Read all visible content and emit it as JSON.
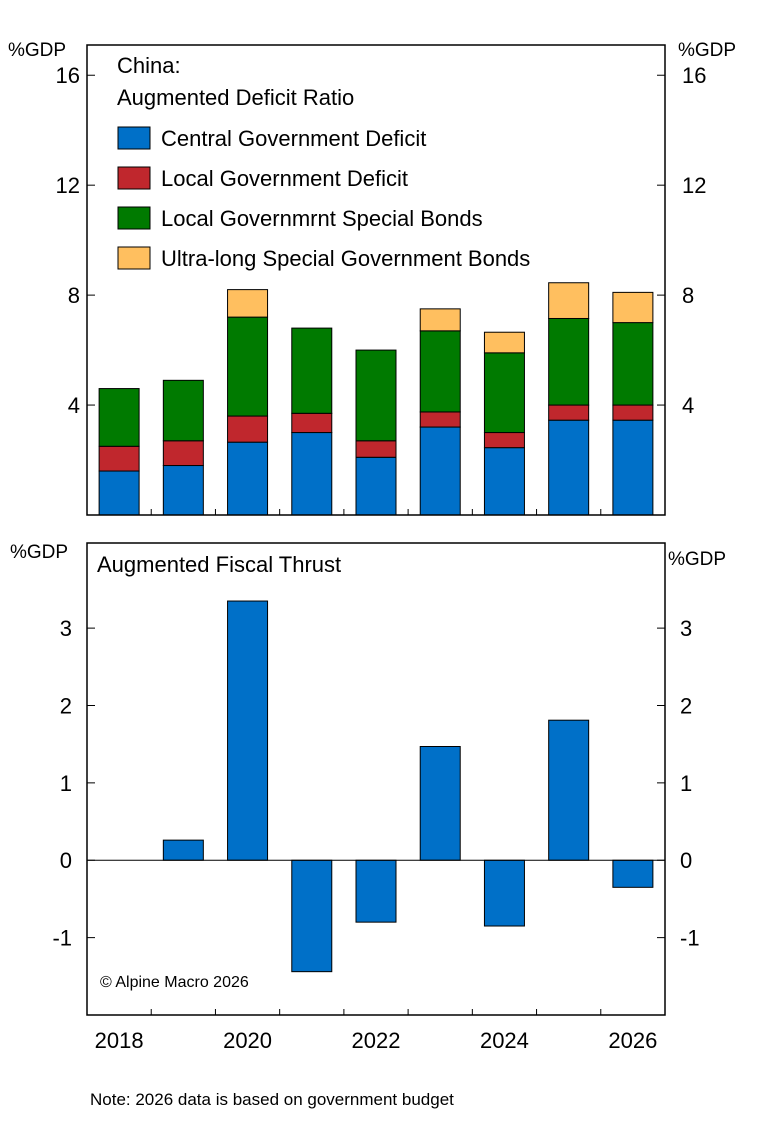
{
  "chart_data": [
    {
      "type": "bar",
      "stacked": true,
      "title": "China:",
      "subtitle": "Augmented Deficit Ratio",
      "ylabel_left": "%GDP",
      "ylabel_right": "%GDP",
      "ylim": [
        0,
        17.1
      ],
      "yticks": [
        4,
        8,
        12,
        16
      ],
      "legend_position": "top-left",
      "categories": [
        "2018",
        "2019",
        "2020",
        "2021",
        "2022",
        "2023",
        "2024",
        "2025",
        "2026"
      ],
      "series": [
        {
          "name": "Central Government Deficit",
          "color": "#0070C8",
          "values": [
            1.6,
            1.8,
            2.65,
            3.0,
            2.1,
            3.2,
            2.45,
            3.45,
            3.45
          ]
        },
        {
          "name": "Local Government Deficit",
          "color": "#C0272D",
          "values": [
            0.9,
            0.9,
            0.95,
            0.7,
            0.6,
            0.55,
            0.55,
            0.55,
            0.55
          ]
        },
        {
          "name": "Local Governmrnt Special Bonds",
          "color": "#007A00",
          "values": [
            2.1,
            2.2,
            3.6,
            3.1,
            3.3,
            2.95,
            2.9,
            3.15,
            3.0
          ]
        },
        {
          "name": "Ultra-long Special Government Bonds",
          "color": "#FFBF5F",
          "values": [
            0,
            0,
            1.0,
            0,
            0,
            0.8,
            0.75,
            1.3,
            1.1
          ]
        }
      ]
    },
    {
      "type": "bar",
      "title": "Augmented Fiscal Thrust",
      "ylabel_left": "%GDP",
      "ylabel_right": "%GDP",
      "ylim": [
        -2.0,
        4.1
      ],
      "yticks": [
        -1,
        0,
        1,
        2,
        3
      ],
      "color": "#0070C8",
      "categories": [
        "2018",
        "2019",
        "2020",
        "2021",
        "2022",
        "2023",
        "2024",
        "2025",
        "2026"
      ],
      "values": [
        0,
        0.26,
        3.35,
        -1.44,
        -0.8,
        1.47,
        -0.85,
        1.81,
        -0.35
      ],
      "xticklabels": [
        "2018",
        "2020",
        "2022",
        "2024",
        "2026"
      ],
      "annotation": "© Alpine Macro 2026"
    }
  ],
  "note": "Note: 2026 data is based on government budget"
}
